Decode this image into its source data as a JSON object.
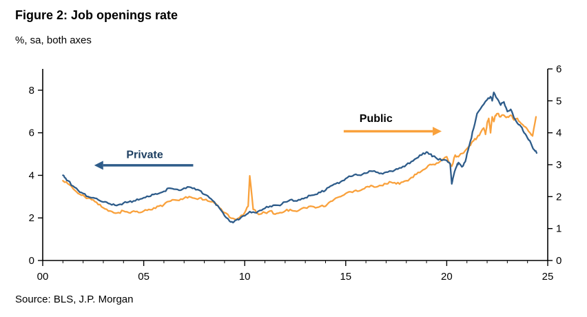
{
  "header": {
    "title": "Figure 2: Job openings rate",
    "subtitle": "%, sa, both axes"
  },
  "footer": {
    "source": "Source: BLS, J.P. Morgan"
  },
  "chart_data": {
    "type": "line",
    "title": "Figure 2: Job openings rate",
    "subtitle": "%, sa, both axes",
    "source": "Source: BLS, J.P. Morgan",
    "x_axis": {
      "range": [
        2000,
        2025
      ],
      "major_ticks": [
        2000,
        2005,
        2010,
        2015,
        2020,
        2025
      ],
      "tick_labels": [
        "00",
        "05",
        "10",
        "15",
        "20",
        "25"
      ],
      "minor_tick_interval": 1
    },
    "y_left": {
      "label": "Private (%, sa)",
      "range": [
        0,
        9
      ],
      "ticks": [
        0,
        2,
        4,
        6,
        8
      ]
    },
    "y_right": {
      "label": "Public (%, sa)",
      "range": [
        0,
        6
      ],
      "ticks": [
        0,
        1,
        2,
        3,
        4,
        5,
        6
      ]
    },
    "grid": false,
    "legend": "annotated-arrows",
    "series": [
      {
        "name": "Public",
        "axis": "right",
        "color": "#F9A13C",
        "noise": 0.04,
        "points": [
          [
            2001.0,
            2.5
          ],
          [
            2001.25,
            2.4
          ],
          [
            2001.5,
            2.25
          ],
          [
            2001.75,
            2.1
          ],
          [
            2002.0,
            2.05
          ],
          [
            2002.25,
            1.95
          ],
          [
            2002.5,
            1.9
          ],
          [
            2002.75,
            1.75
          ],
          [
            2003.0,
            1.65
          ],
          [
            2003.25,
            1.55
          ],
          [
            2003.5,
            1.5
          ],
          [
            2003.75,
            1.5
          ],
          [
            2004.0,
            1.55
          ],
          [
            2004.25,
            1.5
          ],
          [
            2004.5,
            1.55
          ],
          [
            2004.75,
            1.5
          ],
          [
            2005.0,
            1.55
          ],
          [
            2005.25,
            1.6
          ],
          [
            2005.5,
            1.65
          ],
          [
            2005.75,
            1.7
          ],
          [
            2006.0,
            1.75
          ],
          [
            2006.25,
            1.85
          ],
          [
            2006.5,
            1.9
          ],
          [
            2006.75,
            1.88
          ],
          [
            2007.0,
            1.95
          ],
          [
            2007.25,
            2.0
          ],
          [
            2007.5,
            1.95
          ],
          [
            2007.75,
            1.95
          ],
          [
            2008.0,
            1.9
          ],
          [
            2008.25,
            1.85
          ],
          [
            2008.5,
            1.8
          ],
          [
            2008.75,
            1.65
          ],
          [
            2009.0,
            1.5
          ],
          [
            2009.25,
            1.35
          ],
          [
            2009.5,
            1.3
          ],
          [
            2009.75,
            1.35
          ],
          [
            2010.0,
            1.5
          ],
          [
            2010.17,
            1.7
          ],
          [
            2010.25,
            2.65
          ],
          [
            2010.42,
            1.6
          ],
          [
            2010.58,
            1.5
          ],
          [
            2010.75,
            1.45
          ],
          [
            2011.0,
            1.5
          ],
          [
            2011.25,
            1.55
          ],
          [
            2011.5,
            1.45
          ],
          [
            2011.75,
            1.5
          ],
          [
            2012.0,
            1.55
          ],
          [
            2012.25,
            1.6
          ],
          [
            2012.5,
            1.55
          ],
          [
            2012.75,
            1.6
          ],
          [
            2013.0,
            1.65
          ],
          [
            2013.25,
            1.7
          ],
          [
            2013.5,
            1.65
          ],
          [
            2013.75,
            1.7
          ],
          [
            2014.0,
            1.7
          ],
          [
            2014.25,
            1.85
          ],
          [
            2014.5,
            1.95
          ],
          [
            2014.75,
            2.0
          ],
          [
            2015.0,
            2.1
          ],
          [
            2015.25,
            2.15
          ],
          [
            2015.5,
            2.2
          ],
          [
            2015.75,
            2.2
          ],
          [
            2016.0,
            2.3
          ],
          [
            2016.25,
            2.35
          ],
          [
            2016.5,
            2.3
          ],
          [
            2016.75,
            2.35
          ],
          [
            2017.0,
            2.4
          ],
          [
            2017.25,
            2.45
          ],
          [
            2017.5,
            2.4
          ],
          [
            2017.75,
            2.45
          ],
          [
            2018.0,
            2.5
          ],
          [
            2018.25,
            2.6
          ],
          [
            2018.5,
            2.7
          ],
          [
            2018.75,
            2.8
          ],
          [
            2019.0,
            2.9
          ],
          [
            2019.25,
            3.0
          ],
          [
            2019.5,
            3.05
          ],
          [
            2019.75,
            3.15
          ],
          [
            2020.0,
            3.25
          ],
          [
            2020.25,
            2.95
          ],
          [
            2020.42,
            3.3
          ],
          [
            2020.58,
            3.25
          ],
          [
            2020.75,
            3.35
          ],
          [
            2021.0,
            3.5
          ],
          [
            2021.17,
            3.6
          ],
          [
            2021.33,
            3.75
          ],
          [
            2021.5,
            3.85
          ],
          [
            2021.67,
            4.0
          ],
          [
            2021.83,
            4.15
          ],
          [
            2021.92,
            3.95
          ],
          [
            2022.0,
            4.3
          ],
          [
            2022.08,
            4.45
          ],
          [
            2022.17,
            4.0
          ],
          [
            2022.25,
            4.5
          ],
          [
            2022.33,
            4.35
          ],
          [
            2022.42,
            4.55
          ],
          [
            2022.5,
            4.6
          ],
          [
            2022.67,
            4.5
          ],
          [
            2022.83,
            4.55
          ],
          [
            2023.0,
            4.5
          ],
          [
            2023.17,
            4.55
          ],
          [
            2023.33,
            4.4
          ],
          [
            2023.5,
            4.45
          ],
          [
            2023.67,
            4.3
          ],
          [
            2023.83,
            4.2
          ],
          [
            2024.0,
            4.1
          ],
          [
            2024.17,
            3.95
          ],
          [
            2024.25,
            3.9
          ],
          [
            2024.42,
            4.5
          ]
        ]
      },
      {
        "name": "Private",
        "axis": "left",
        "color": "#2E5C8A",
        "noise": 0.05,
        "points": [
          [
            2001.0,
            4.0
          ],
          [
            2001.08,
            3.9
          ],
          [
            2001.25,
            3.75
          ],
          [
            2001.5,
            3.5
          ],
          [
            2001.75,
            3.3
          ],
          [
            2002.0,
            3.15
          ],
          [
            2002.25,
            3.0
          ],
          [
            2002.5,
            2.95
          ],
          [
            2002.75,
            2.85
          ],
          [
            2003.0,
            2.75
          ],
          [
            2003.25,
            2.68
          ],
          [
            2003.5,
            2.65
          ],
          [
            2003.75,
            2.62
          ],
          [
            2004.0,
            2.7
          ],
          [
            2004.25,
            2.75
          ],
          [
            2004.5,
            2.8
          ],
          [
            2004.75,
            2.85
          ],
          [
            2005.0,
            2.95
          ],
          [
            2005.25,
            3.0
          ],
          [
            2005.5,
            3.1
          ],
          [
            2005.75,
            3.15
          ],
          [
            2006.0,
            3.25
          ],
          [
            2006.25,
            3.4
          ],
          [
            2006.5,
            3.35
          ],
          [
            2006.75,
            3.3
          ],
          [
            2007.0,
            3.4
          ],
          [
            2007.25,
            3.45
          ],
          [
            2007.5,
            3.4
          ],
          [
            2007.75,
            3.3
          ],
          [
            2008.0,
            3.1
          ],
          [
            2008.25,
            2.95
          ],
          [
            2008.5,
            2.75
          ],
          [
            2008.75,
            2.45
          ],
          [
            2009.0,
            2.1
          ],
          [
            2009.25,
            1.85
          ],
          [
            2009.42,
            1.78
          ],
          [
            2009.58,
            1.9
          ],
          [
            2009.75,
            1.95
          ],
          [
            2010.0,
            2.1
          ],
          [
            2010.25,
            2.3
          ],
          [
            2010.5,
            2.25
          ],
          [
            2010.75,
            2.35
          ],
          [
            2011.0,
            2.45
          ],
          [
            2011.25,
            2.55
          ],
          [
            2011.5,
            2.6
          ],
          [
            2011.75,
            2.58
          ],
          [
            2012.0,
            2.75
          ],
          [
            2012.25,
            2.85
          ],
          [
            2012.5,
            2.8
          ],
          [
            2012.75,
            2.85
          ],
          [
            2013.0,
            2.95
          ],
          [
            2013.25,
            3.05
          ],
          [
            2013.5,
            3.1
          ],
          [
            2013.75,
            3.2
          ],
          [
            2014.0,
            3.3
          ],
          [
            2014.25,
            3.5
          ],
          [
            2014.5,
            3.6
          ],
          [
            2014.75,
            3.7
          ],
          [
            2015.0,
            3.85
          ],
          [
            2015.25,
            3.95
          ],
          [
            2015.5,
            4.05
          ],
          [
            2015.75,
            4.0
          ],
          [
            2016.0,
            4.1
          ],
          [
            2016.25,
            4.2
          ],
          [
            2016.5,
            4.15
          ],
          [
            2016.75,
            4.1
          ],
          [
            2017.0,
            4.15
          ],
          [
            2017.25,
            4.2
          ],
          [
            2017.5,
            4.3
          ],
          [
            2017.75,
            4.35
          ],
          [
            2018.0,
            4.5
          ],
          [
            2018.25,
            4.65
          ],
          [
            2018.5,
            4.8
          ],
          [
            2018.75,
            4.95
          ],
          [
            2019.0,
            5.1
          ],
          [
            2019.17,
            5.0
          ],
          [
            2019.33,
            4.9
          ],
          [
            2019.5,
            4.8
          ],
          [
            2019.75,
            4.7
          ],
          [
            2020.0,
            4.7
          ],
          [
            2020.17,
            4.55
          ],
          [
            2020.25,
            3.6
          ],
          [
            2020.33,
            3.95
          ],
          [
            2020.5,
            4.45
          ],
          [
            2020.58,
            4.6
          ],
          [
            2020.75,
            4.4
          ],
          [
            2020.92,
            4.65
          ],
          [
            2021.0,
            5.0
          ],
          [
            2021.17,
            5.6
          ],
          [
            2021.33,
            6.2
          ],
          [
            2021.5,
            6.9
          ],
          [
            2021.75,
            7.25
          ],
          [
            2022.0,
            7.55
          ],
          [
            2022.17,
            7.7
          ],
          [
            2022.25,
            7.5
          ],
          [
            2022.33,
            7.9
          ],
          [
            2022.5,
            7.6
          ],
          [
            2022.67,
            7.3
          ],
          [
            2022.83,
            7.45
          ],
          [
            2023.0,
            7.0
          ],
          [
            2023.17,
            7.1
          ],
          [
            2023.33,
            6.7
          ],
          [
            2023.5,
            6.45
          ],
          [
            2023.67,
            6.3
          ],
          [
            2023.83,
            6.0
          ],
          [
            2024.0,
            5.75
          ],
          [
            2024.17,
            5.5
          ],
          [
            2024.33,
            5.2
          ],
          [
            2024.45,
            5.05
          ]
        ]
      }
    ],
    "annotations": [
      {
        "id": "private",
        "text": "Private",
        "text_color": "#1F4062",
        "x": 2005.05,
        "y": 4.95,
        "arrow": {
          "from_x": 2007.45,
          "to_x": 2002.55,
          "y": 4.47,
          "color": "#2E5C8A"
        }
      },
      {
        "id": "public",
        "text": "Public",
        "text_color": "#000000",
        "x": 2016.5,
        "y": 6.65,
        "arrow": {
          "from_x": 2014.9,
          "to_x": 2019.75,
          "y": 6.07,
          "color": "#F9A13C"
        }
      }
    ]
  }
}
